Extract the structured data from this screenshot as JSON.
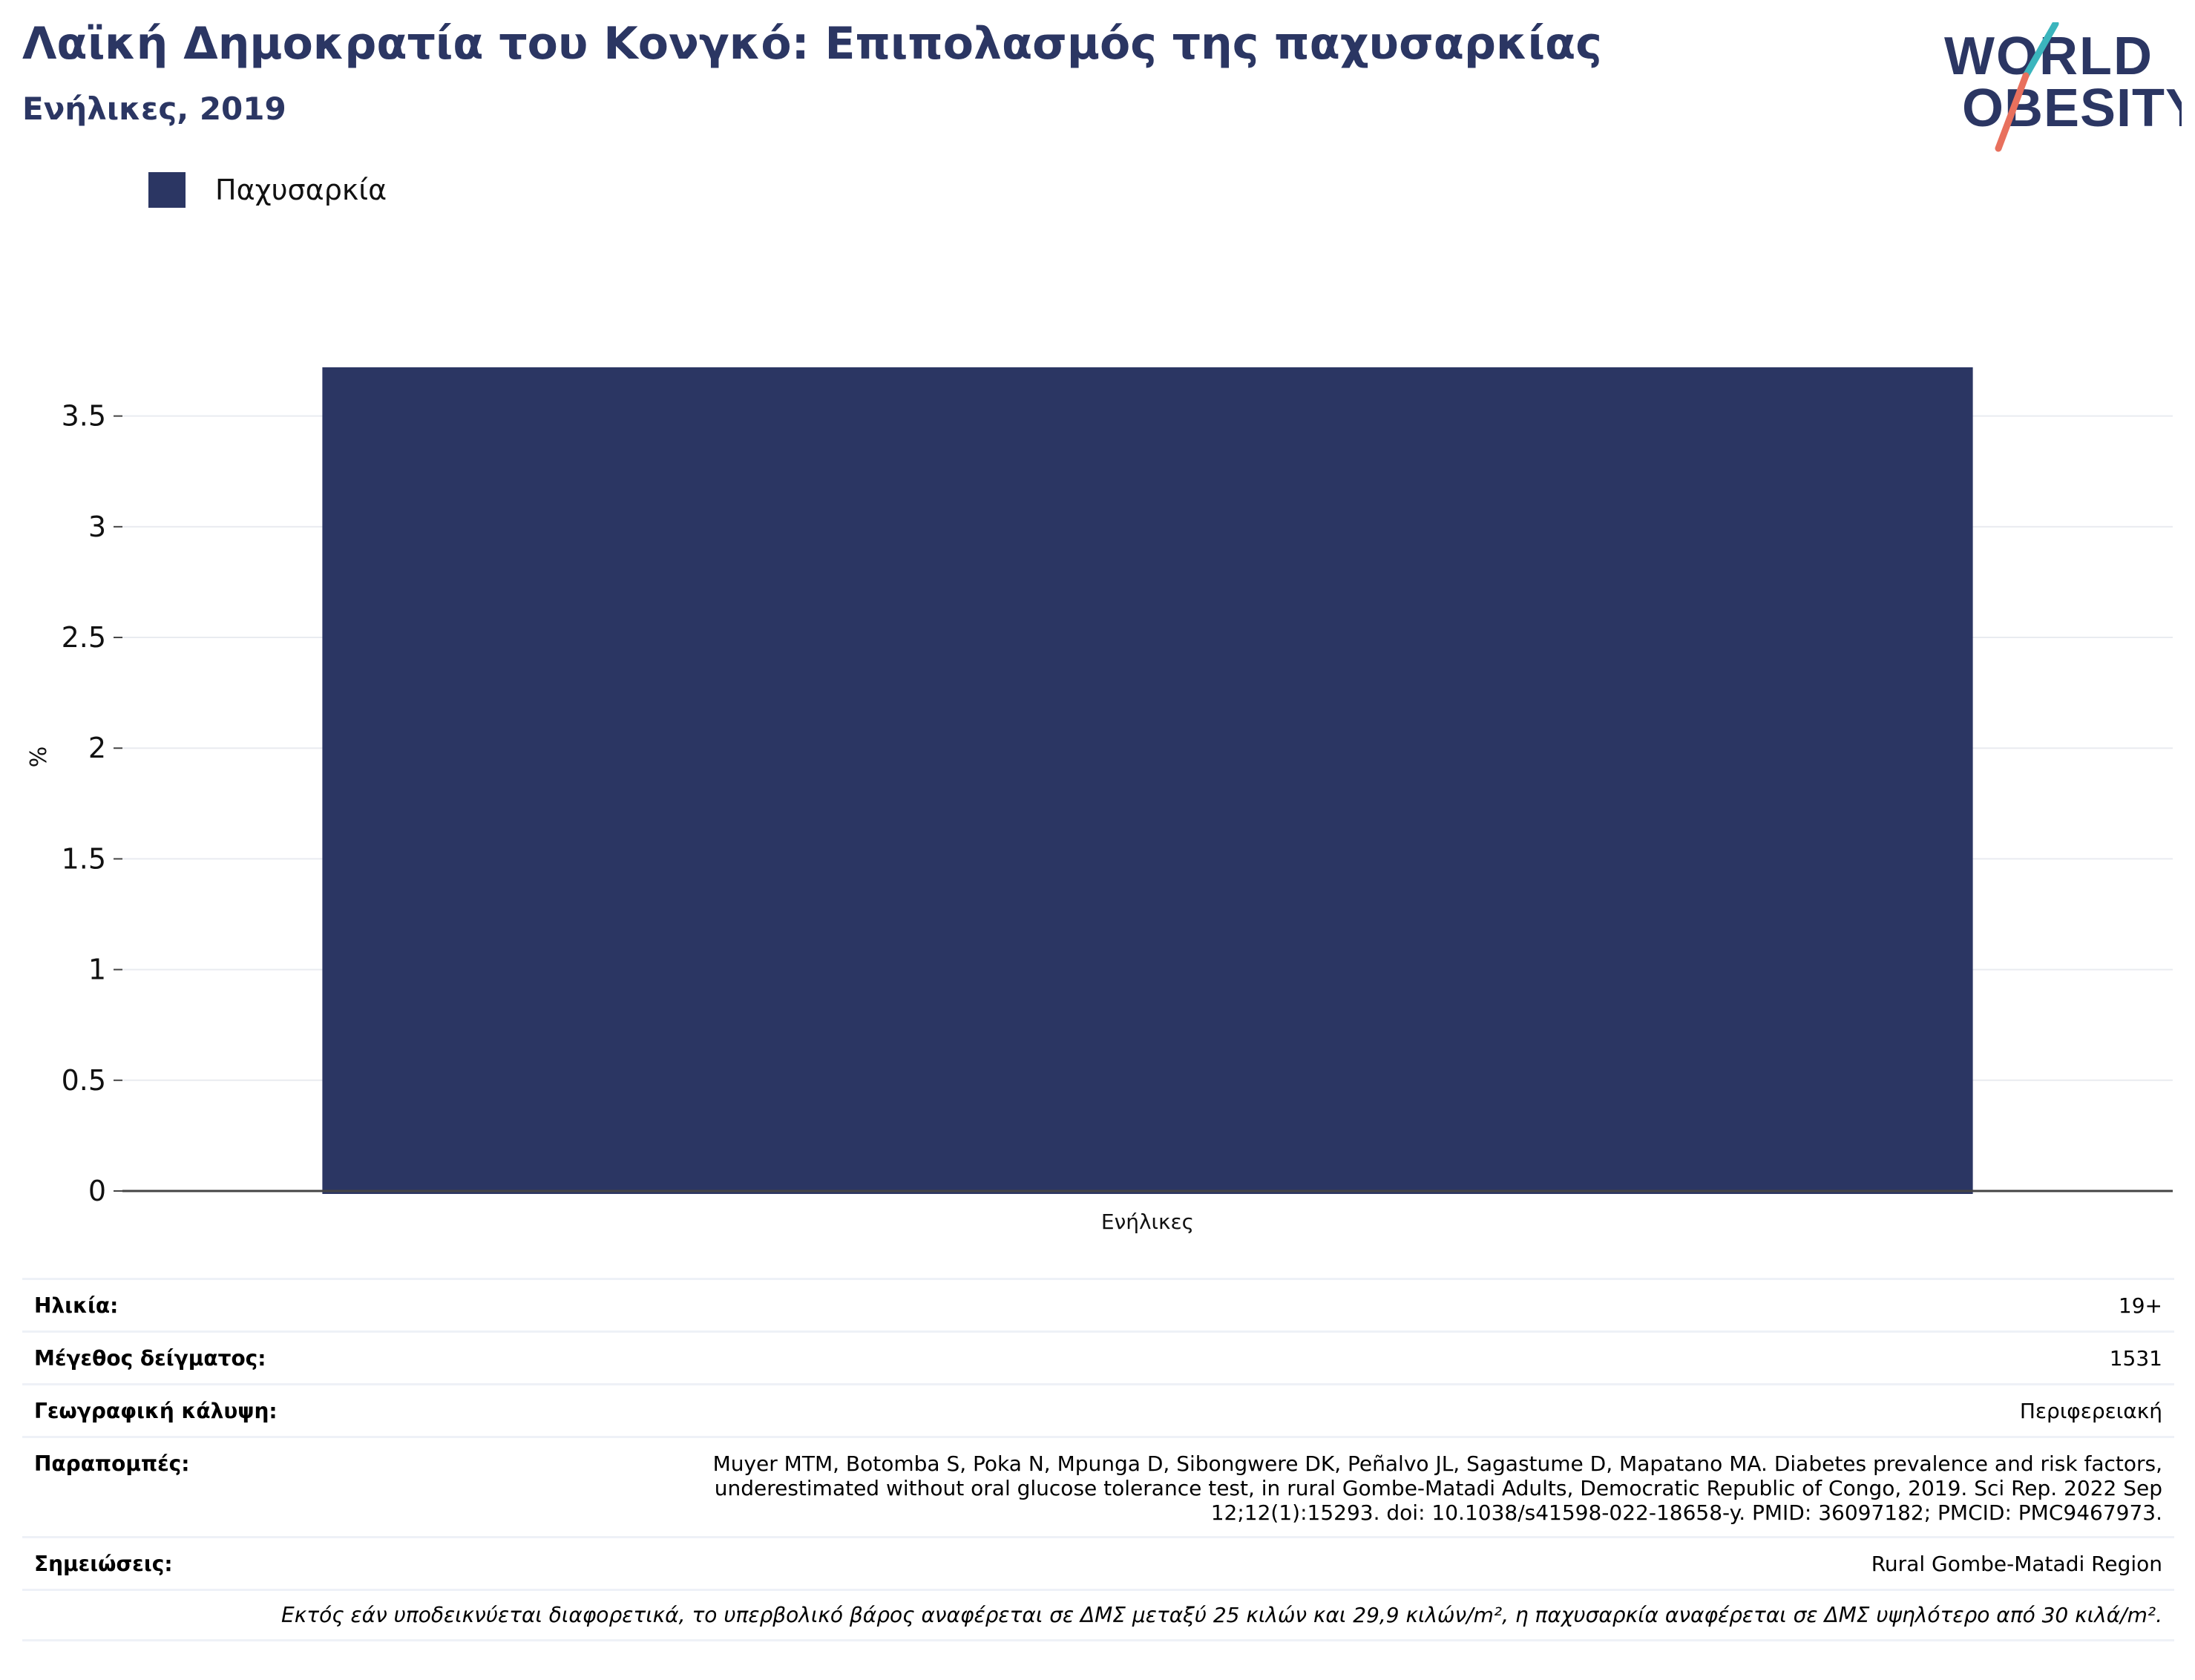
{
  "header": {
    "title": "Λαϊκή Δημοκρατία του Κονγκό: Επιπολασμός της παχυσαρκίας",
    "subtitle": "Ενήλικες, 2019"
  },
  "logo": {
    "line1": "WORLD",
    "line2": "OBESITY"
  },
  "legend": {
    "label": "Παχυσαρκία",
    "color": "#2b3663"
  },
  "chart_data": {
    "type": "bar",
    "categories": [
      "Ενήλικες"
    ],
    "series": [
      {
        "name": "Παχυσαρκία",
        "values": [
          3.72
        ],
        "color": "#2b3663"
      }
    ],
    "title": "Λαϊκή Δημοκρατία του Κονγκό: Επιπολασμός της παχυσαρκίας",
    "subtitle": "Ενήλικες, 2019",
    "xlabel": "",
    "ylabel": "%",
    "ylim": [
      0,
      3.72
    ],
    "yticks": [
      0,
      0.5,
      1,
      1.5,
      2,
      2.5,
      3,
      3.5
    ],
    "ytick_labels": [
      "0",
      "0.5",
      "1",
      "1.5",
      "2",
      "2.5",
      "3",
      "3.5"
    ],
    "grid": true,
    "legend_position": "top-left"
  },
  "info": {
    "age_label": "Ηλικία:",
    "age_value": "19+",
    "sample_label": "Μέγεθος δείγματος:",
    "sample_value": "1531",
    "coverage_label": "Γεωγραφική κάλυψη:",
    "coverage_value": "Περιφερειακή",
    "references_label": "Παραπομπές:",
    "references_value": "Muyer MTM, Botomba S, Poka N, Mpunga D, Sibongwere DK, Peñalvo JL, Sagastume D, Mapatano MA. Diabetes prevalence and risk factors, underestimated without oral glucose tolerance test, in rural Gombe-Matadi Adults, Democratic Republic of Congo, 2019. Sci Rep. 2022 Sep 12;12(1):15293. doi: 10.1038/s41598-022-18658-y. PMID: 36097182; PMCID: PMC9467973.",
    "notes_label": "Σημειώσεις:",
    "notes_value": "Rural Gombe-Matadi Region",
    "footnote": "Εκτός εάν υποδεικνύεται διαφορετικά, το υπερβολικό βάρος αναφέρεται σε ΔΜΣ μεταξύ 25 κιλών και 29,9 κιλών/m², η παχυσαρκία αναφέρεται σε ΔΜΣ υψηλότερο από 30 κιλά/m²."
  }
}
